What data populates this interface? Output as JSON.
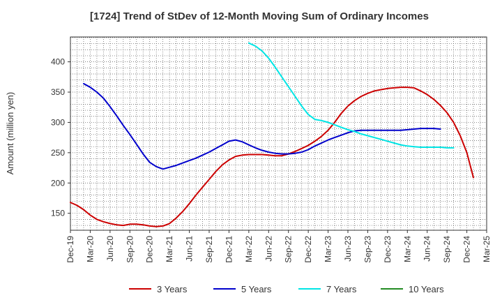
{
  "chart_data": {
    "type": "line",
    "title": "[1724]  Trend of StDev of 12-Month Moving Sum of Ordinary Incomes",
    "ylabel": "Amount (million yen)",
    "xlabel": "",
    "x_ticks": [
      "Dec-19",
      "Mar-20",
      "Jun-20",
      "Sep-20",
      "Dec-20",
      "Mar-21",
      "Jun-21",
      "Sep-21",
      "Dec-21",
      "Mar-22",
      "Jun-22",
      "Sep-22",
      "Dec-22",
      "Mar-23",
      "Jun-23",
      "Sep-23",
      "Dec-23",
      "Mar-24",
      "Jun-24",
      "Sep-24",
      "Dec-24",
      "Mar-25"
    ],
    "y_ticks": [
      150,
      200,
      250,
      300,
      350,
      400
    ],
    "ylim": [
      122,
      441
    ],
    "x_range_months": [
      0,
      63
    ],
    "grid": true,
    "legend_position": "bottom",
    "series": [
      {
        "name": "3 Years",
        "color": "#cc0000",
        "start_month": 0,
        "values": [
          168,
          163,
          156,
          147,
          140,
          136,
          133,
          131,
          130,
          132,
          132,
          131,
          129,
          128,
          129,
          133,
          142,
          153,
          166,
          180,
          193,
          206,
          219,
          230,
          238,
          244,
          246,
          247,
          247,
          247,
          246,
          245,
          245,
          248,
          252,
          257,
          262,
          269,
          277,
          287,
          300,
          315,
          327,
          336,
          343,
          348,
          352,
          354,
          356,
          357,
          358,
          358,
          357,
          352,
          346,
          338,
          328,
          316,
          300,
          278,
          250,
          209
        ]
      },
      {
        "name": "5 Years",
        "color": "#0000cc",
        "start_month": 2,
        "values": [
          364,
          358,
          350,
          340,
          326,
          311,
          295,
          280,
          264,
          248,
          234,
          227,
          223,
          226,
          229,
          233,
          237,
          241,
          246,
          251,
          257,
          263,
          269,
          271,
          268,
          263,
          258,
          254,
          251,
          249,
          248,
          248,
          249,
          251,
          255,
          261,
          266,
          271,
          275,
          279,
          283,
          286,
          287,
          287,
          287,
          287,
          287,
          287,
          287,
          288,
          289,
          290,
          290,
          290,
          289
        ]
      },
      {
        "name": "7 Years",
        "color": "#00e5e5",
        "start_month": 27,
        "values": [
          431,
          426,
          418,
          406,
          391,
          375,
          359,
          343,
          327,
          313,
          305,
          303,
          300,
          296,
          292,
          288,
          285,
          281,
          278,
          275,
          272,
          269,
          266,
          263,
          261,
          260,
          259,
          259,
          259,
          259,
          258,
          258
        ]
      },
      {
        "name": "10 Years",
        "color": "#228b22",
        "start_month": 0,
        "values": []
      }
    ]
  }
}
